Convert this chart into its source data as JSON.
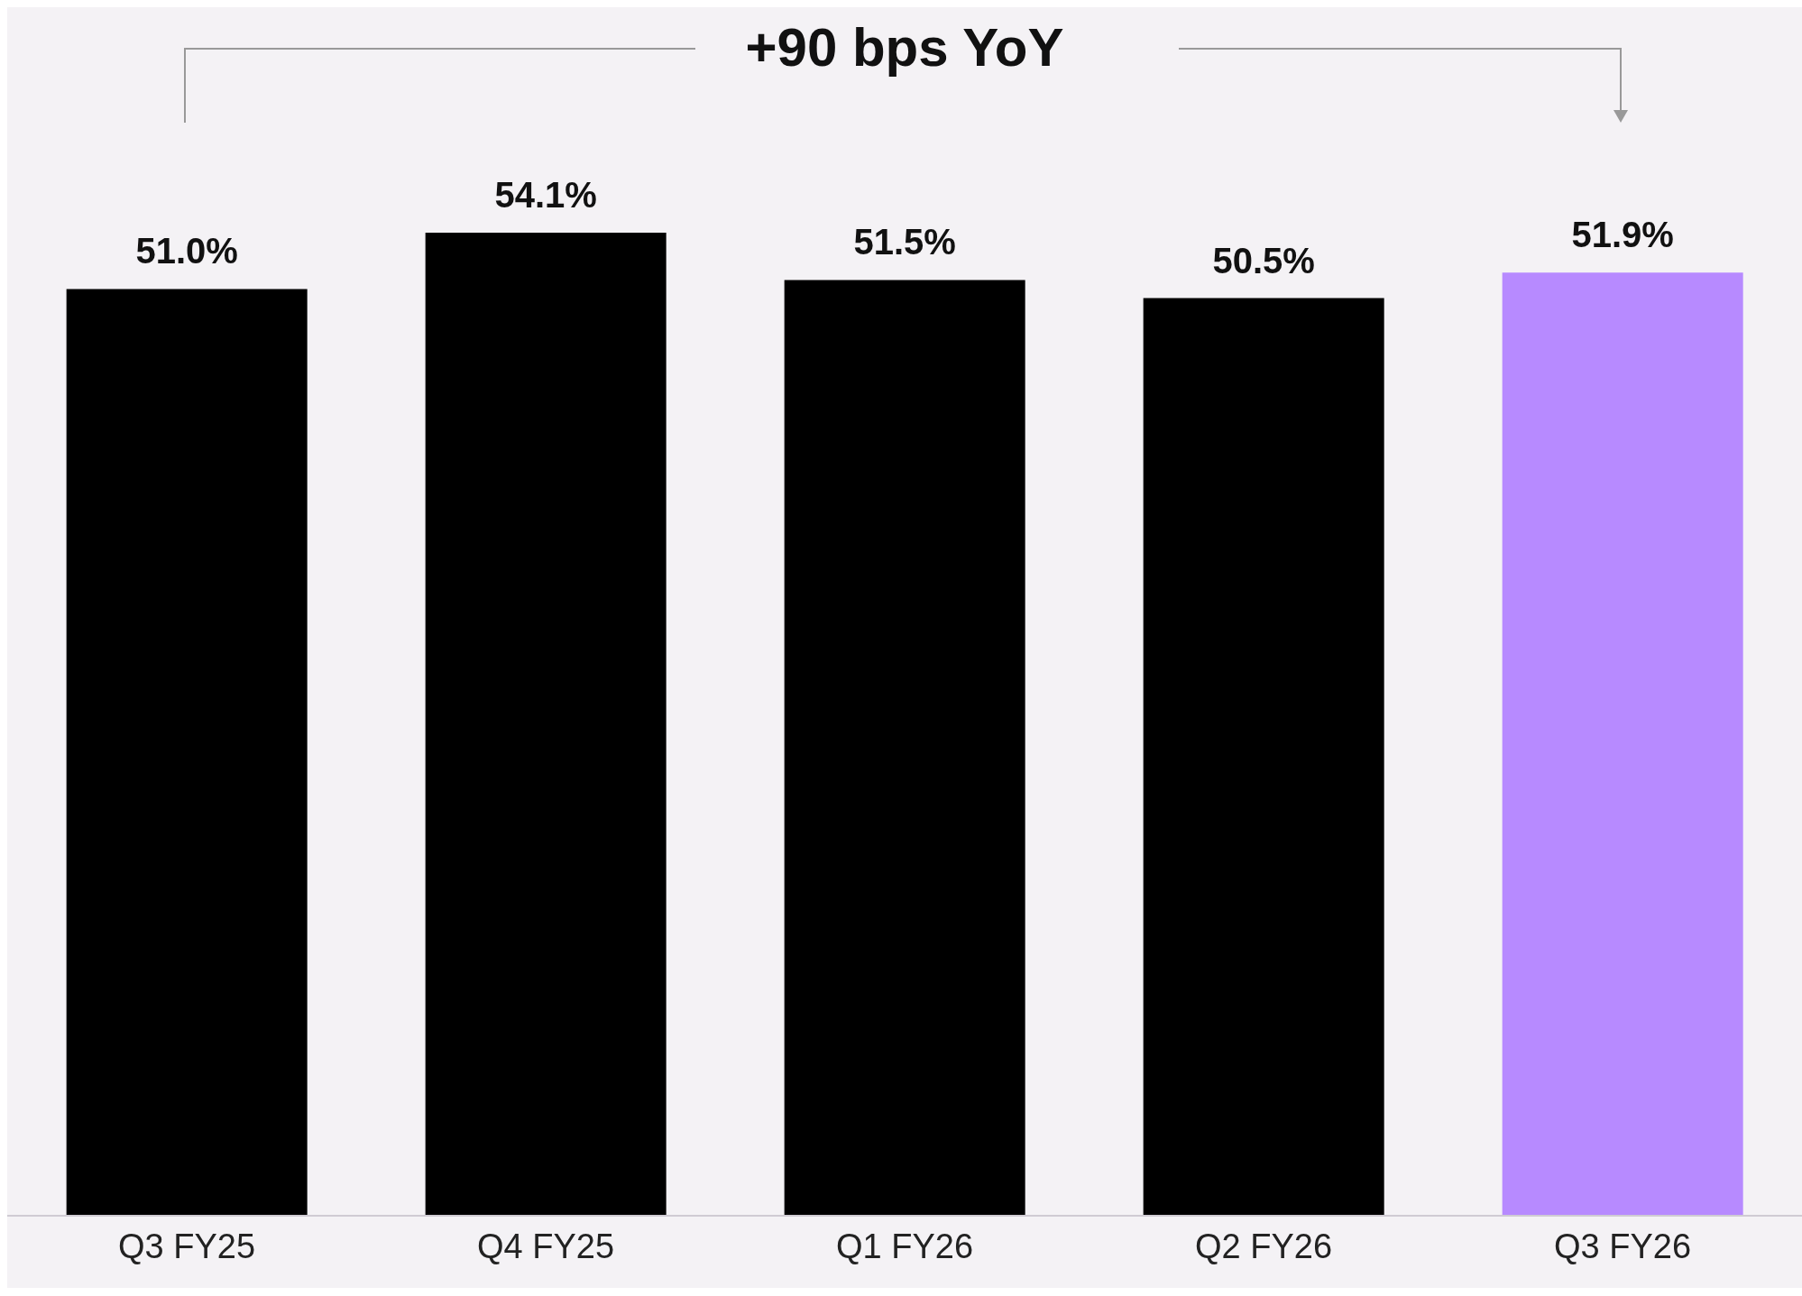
{
  "chart_data": {
    "type": "bar",
    "categories": [
      "Q3 FY25",
      "Q4 FY25",
      "Q1 FY26",
      "Q2 FY26",
      "Q3 FY26"
    ],
    "values": [
      51.0,
      54.1,
      51.5,
      50.5,
      51.9
    ],
    "value_labels": [
      "51.0%",
      "54.1%",
      "51.5%",
      "50.5%",
      "51.9%"
    ],
    "colors": [
      "#000000",
      "#000000",
      "#000000",
      "#000000",
      "#b78aff"
    ],
    "annotations": [
      "+90 bps YoY"
    ]
  }
}
